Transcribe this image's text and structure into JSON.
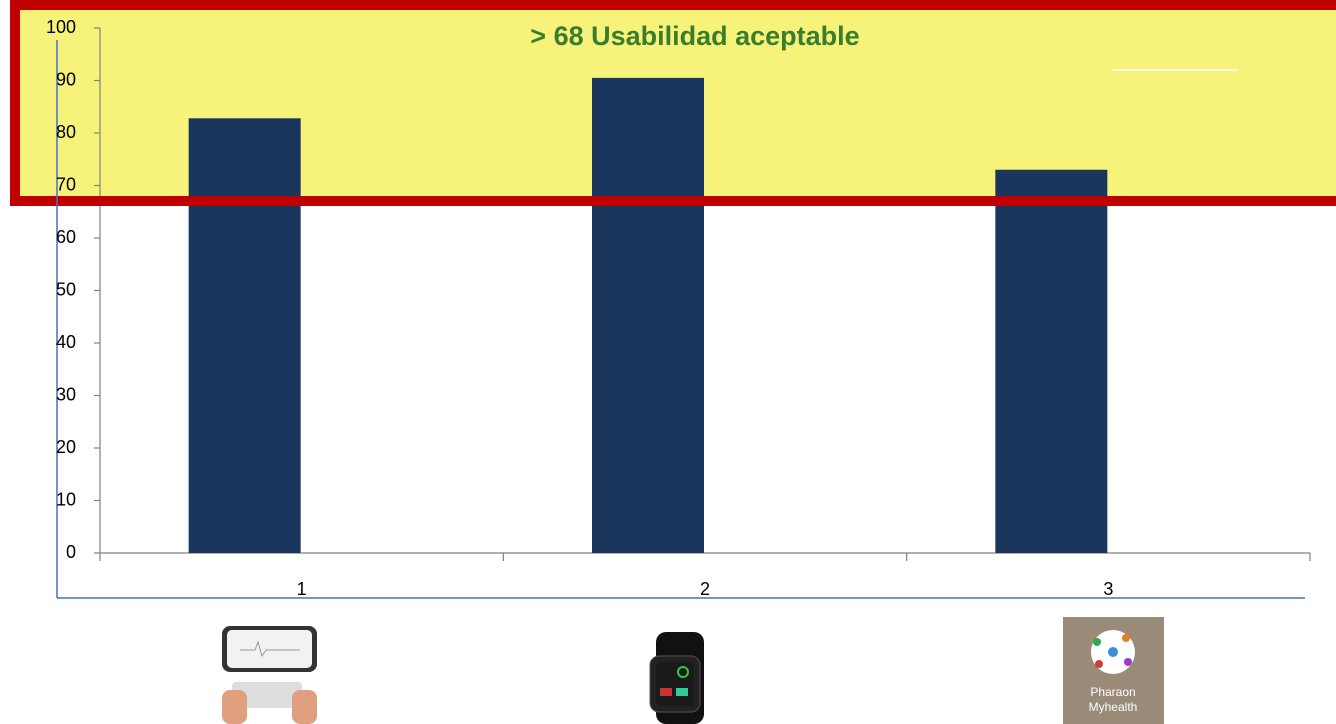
{
  "chart_data": {
    "type": "bar",
    "categories": [
      "1",
      "2",
      "3"
    ],
    "values": [
      82.8,
      90.5,
      73
    ],
    "color": "#1b365d",
    "ylim": [
      0,
      100
    ],
    "yticks": [
      0,
      10,
      20,
      30,
      40,
      50,
      60,
      70,
      80,
      90,
      100
    ],
    "grid": false,
    "annotations": [
      "> 68 Usabilidad aceptable",
      "Pharaon",
      "Myhealth"
    ]
  }
}
